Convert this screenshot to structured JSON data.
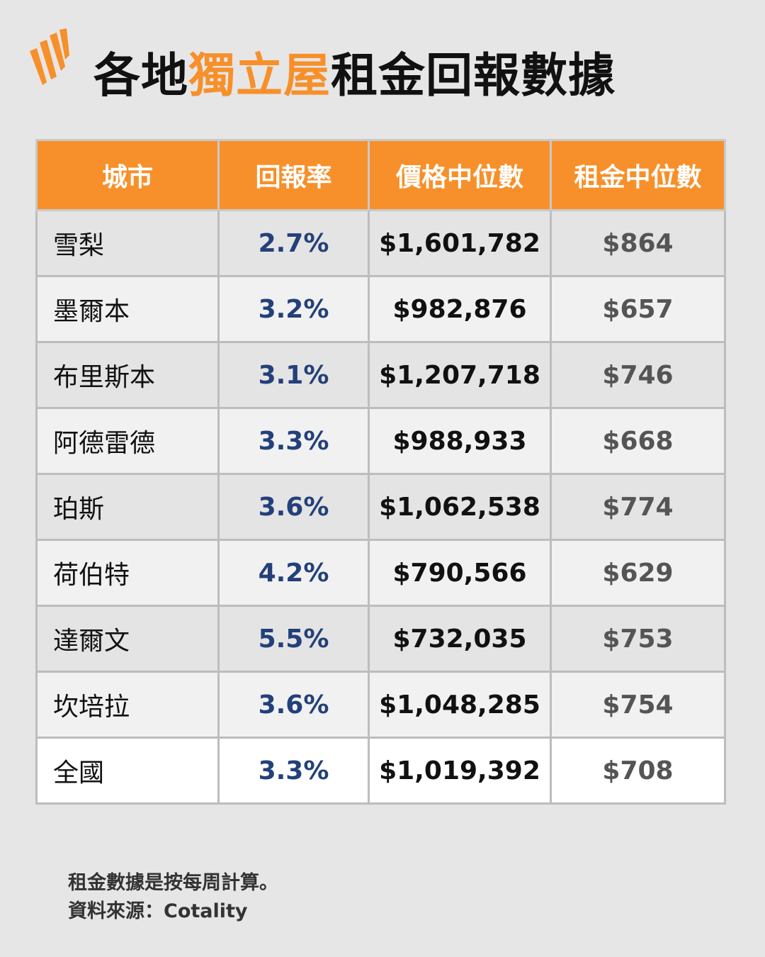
{
  "header": {
    "title_prefix": "各地",
    "title_accent": "獨立屋",
    "title_suffix": "租金回報數據",
    "accent_color": "#f7902a",
    "logo_icon": "sbs-logo-icon"
  },
  "table": {
    "columns": [
      "城市",
      "回報率",
      "價格中位數",
      "租金中位數"
    ],
    "rows": [
      {
        "city": "雪梨",
        "yield": "2.7%",
        "price": "$1,601,782",
        "rent": "$864"
      },
      {
        "city": "墨爾本",
        "yield": "3.2%",
        "price": "$982,876",
        "rent": "$657"
      },
      {
        "city": "布里斯本",
        "yield": "3.1%",
        "price": "$1,207,718",
        "rent": "$746"
      },
      {
        "city": "阿德雷德",
        "yield": "3.3%",
        "price": "$988,933",
        "rent": "$668"
      },
      {
        "city": "珀斯",
        "yield": "3.6%",
        "price": "$1,062,538",
        "rent": "$774"
      },
      {
        "city": "荷伯特",
        "yield": "4.2%",
        "price": "$790,566",
        "rent": "$629"
      },
      {
        "city": "達爾文",
        "yield": "5.5%",
        "price": "$732,035",
        "rent": "$753"
      },
      {
        "city": "坎培拉",
        "yield": "3.6%",
        "price": "$1,048,285",
        "rent": "$754"
      }
    ],
    "total": {
      "city": "全國",
      "yield": "3.3%",
      "price": "$1,019,392",
      "rent": "$708"
    }
  },
  "notes": {
    "line1": "租金數據是按每周計算。",
    "line2": "資料來源：Cotality"
  }
}
